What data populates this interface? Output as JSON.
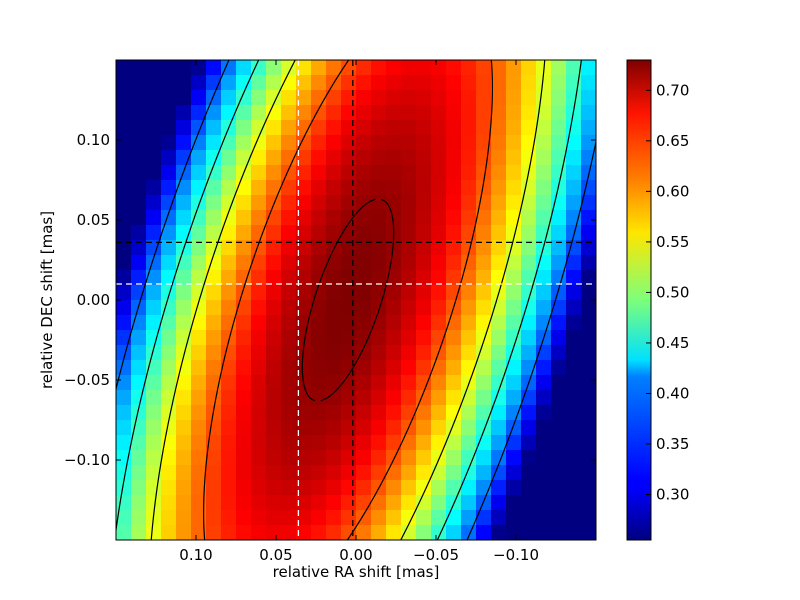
{
  "chart_data": {
    "type": "heatmap",
    "title": "",
    "xlabel": "relative RA shift [mas]",
    "ylabel": "relative DEC shift [mas]",
    "xlim": [
      0.15,
      -0.15
    ],
    "ylim": [
      -0.15,
      0.15
    ],
    "x_inverted": true,
    "grid": false,
    "grid_cells": [
      32,
      32
    ],
    "colormap": "jet",
    "colorbar_range": [
      0.255,
      0.73
    ],
    "colorbar_ticks": [
      "0.30",
      "0.35",
      "0.40",
      "0.45",
      "0.50",
      "0.55",
      "0.60",
      "0.65",
      "0.70"
    ],
    "xticks": [
      "0.10",
      "0.05",
      "0.00",
      "−0.05",
      "−0.10"
    ],
    "yticks": [
      "0.10",
      "0.05",
      "0.00",
      "−0.05",
      "−0.10"
    ],
    "contour_levels": [
      0.36,
      0.45,
      0.54,
      0.63,
      0.72
    ],
    "model": {
      "peak_value": 0.73,
      "peak_ra": 0.005,
      "peak_dec": 0.0,
      "tilt_ra_per_dec": -0.3,
      "ra_falloff": 2.4e-05,
      "dec_falloff": 2.5
    },
    "reference_lines": [
      {
        "axis": "x",
        "value": 0.036,
        "color": "#ffffff",
        "style": "dashed"
      },
      {
        "axis": "x",
        "value": 0.002,
        "color": "#000000",
        "style": "dashed"
      },
      {
        "axis": "y",
        "value": 0.036,
        "color": "#000000",
        "style": "dashed"
      },
      {
        "axis": "y",
        "value": 0.01,
        "color": "#ffffff",
        "style": "dashed"
      }
    ]
  }
}
